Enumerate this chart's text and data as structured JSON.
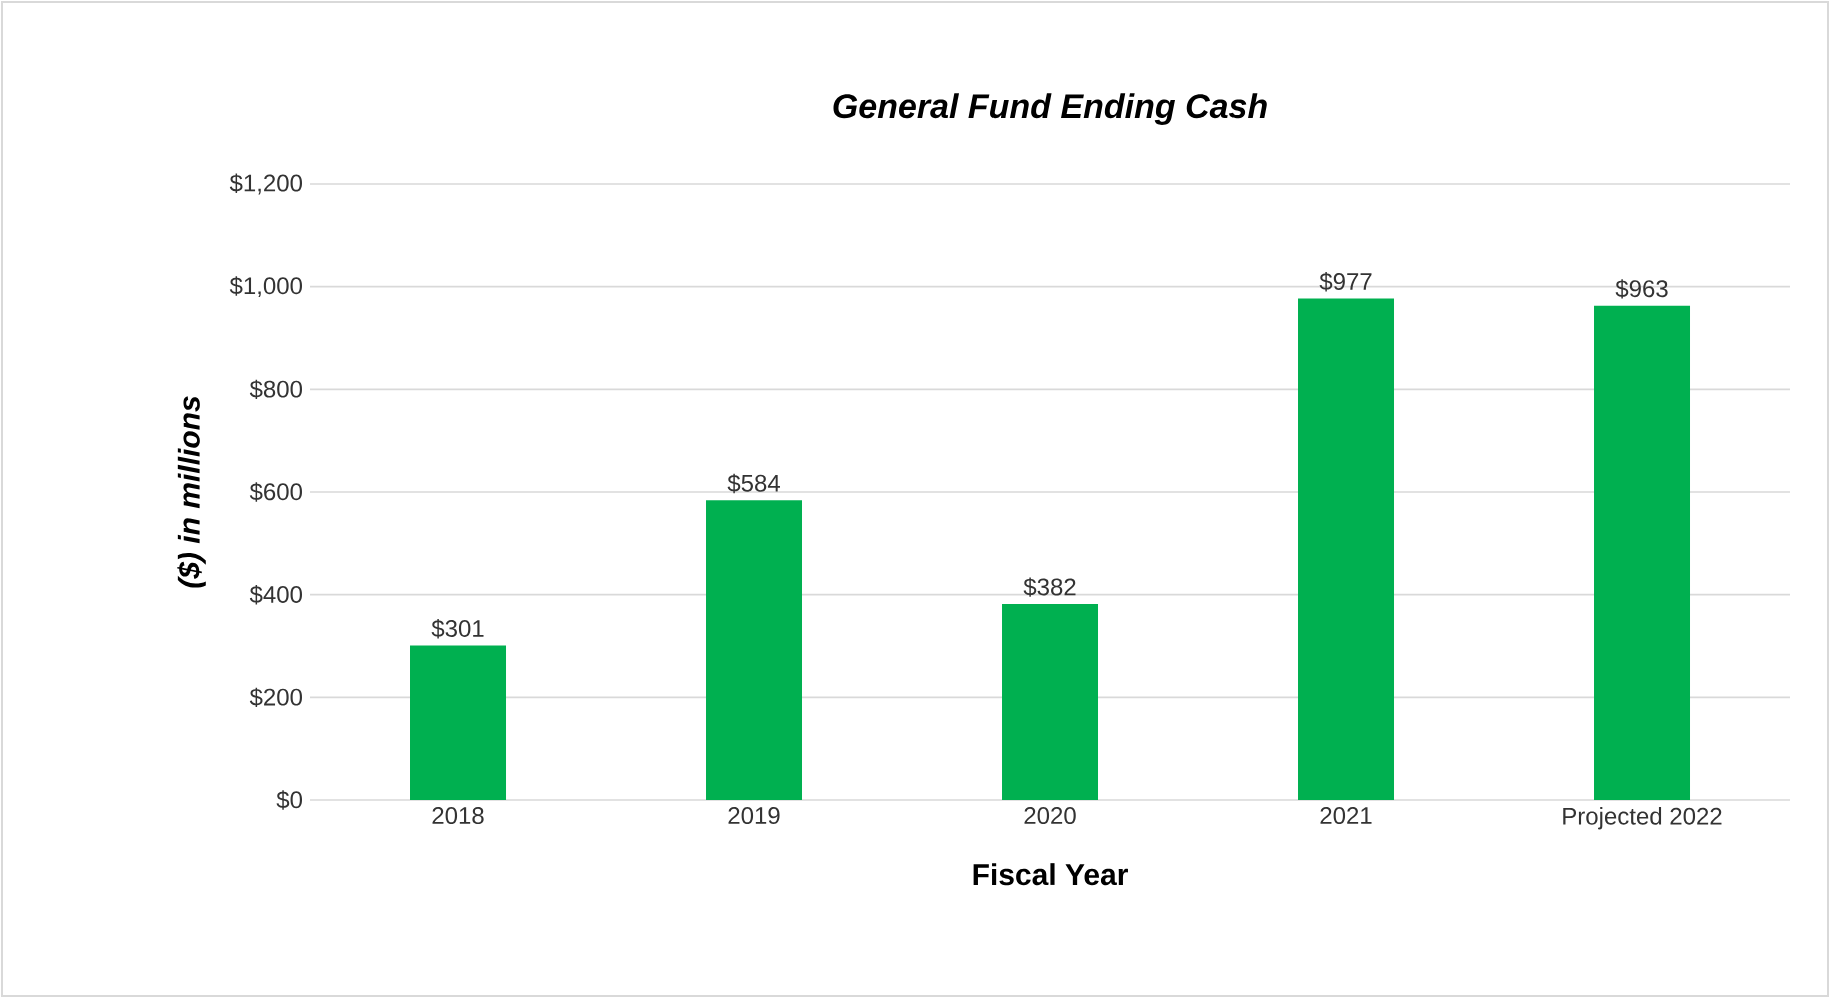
{
  "chart_data": {
    "type": "bar",
    "title": "General Fund Ending Cash",
    "xlabel": "Fiscal Year",
    "ylabel": "($) in millions",
    "categories": [
      "2018",
      "2019",
      "2020",
      "2021",
      "Projected 2022"
    ],
    "values": [
      301,
      584,
      382,
      977,
      963
    ],
    "value_labels": [
      "$301",
      "$584",
      "$382",
      "$977",
      "$963"
    ],
    "color": "#00b050",
    "ylim": [
      0,
      1200
    ],
    "yticks": [
      {
        "value": 0,
        "label": "$0"
      },
      {
        "value": 200,
        "label": "$200"
      },
      {
        "value": 400,
        "label": "$400"
      },
      {
        "value": 600,
        "label": "$600"
      },
      {
        "value": 800,
        "label": "$800"
      },
      {
        "value": 1000,
        "label": "$1,000"
      },
      {
        "value": 1200,
        "label": "$1,200"
      }
    ],
    "grid": "y"
  }
}
